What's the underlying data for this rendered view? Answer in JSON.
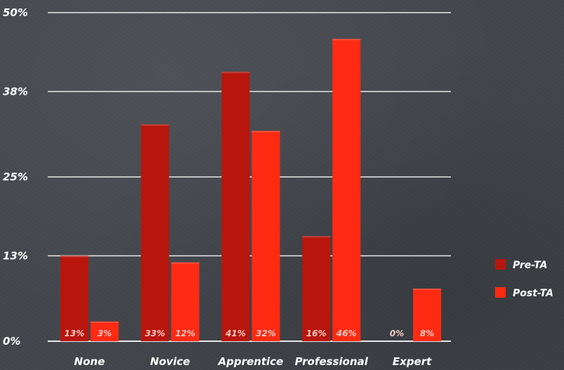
{
  "chart_data": {
    "type": "bar",
    "categories": [
      "None",
      "Novice",
      "Apprentice",
      "Professional",
      "Expert"
    ],
    "series": [
      {
        "name": "Pre-TA",
        "values": [
          13,
          33,
          41,
          16,
          0
        ],
        "labels": [
          "13%",
          "33%",
          "41%",
          "16%",
          "0%"
        ],
        "color": "#b8160c"
      },
      {
        "name": "Post-TA",
        "values": [
          3,
          12,
          32,
          46,
          8
        ],
        "labels": [
          "3%",
          "12%",
          "32%",
          "46%",
          "8%"
        ],
        "color": "#ff2a12"
      }
    ],
    "y_ticks": [
      {
        "value": 0,
        "label": "0%"
      },
      {
        "value": 13,
        "label": "13%"
      },
      {
        "value": 25,
        "label": "25%"
      },
      {
        "value": 38,
        "label": "38%"
      },
      {
        "value": 50,
        "label": "50%"
      }
    ],
    "ylim": [
      0,
      50
    ],
    "grid": true,
    "legend_position": "right",
    "title": "",
    "xlabel": "",
    "ylabel": ""
  }
}
